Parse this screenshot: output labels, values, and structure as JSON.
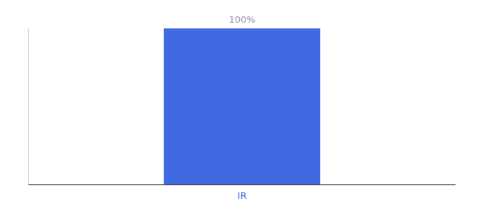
{
  "chart_data": {
    "type": "bar",
    "categories": [
      "IR"
    ],
    "values": [
      100
    ],
    "value_labels": [
      "100%"
    ],
    "color": "#4169E1",
    "ylim": [
      0,
      100
    ],
    "data_labels": true,
    "tick_labels": "x"
  }
}
